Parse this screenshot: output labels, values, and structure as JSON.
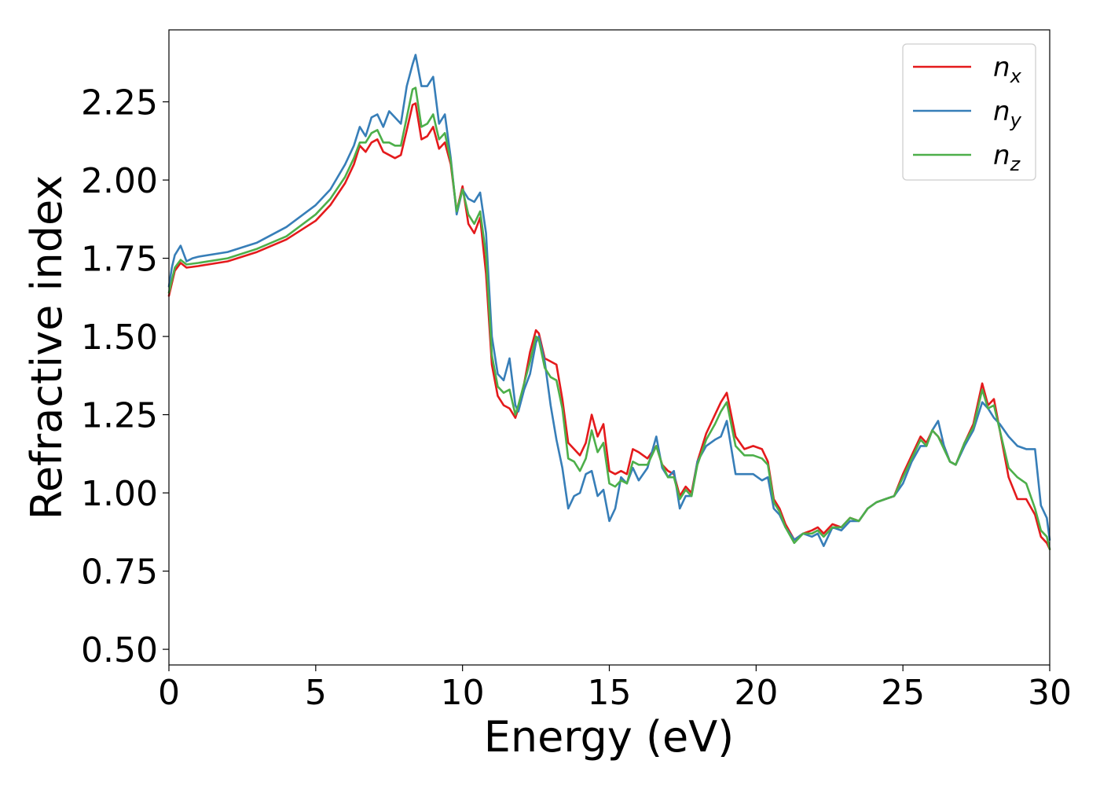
{
  "chart_data": {
    "type": "line",
    "title": "",
    "xlabel": "Energy (eV)",
    "ylabel": "Refractive index",
    "xlim": [
      0,
      30
    ],
    "ylim": [
      0.45,
      2.48
    ],
    "xticks": [
      0,
      5,
      10,
      15,
      20,
      25,
      30
    ],
    "xtick_labels": [
      "0",
      "5",
      "10",
      "15",
      "20",
      "25",
      "30"
    ],
    "yticks": [
      0.5,
      0.75,
      1.0,
      1.25,
      1.5,
      1.75,
      2.0,
      2.25
    ],
    "ytick_labels": [
      "0.50",
      "0.75",
      "1.00",
      "1.25",
      "1.50",
      "1.75",
      "2.00",
      "2.25"
    ],
    "grid": false,
    "legend_position": "top-right",
    "series": [
      {
        "name": "n_x",
        "label_base": "n",
        "label_sub": "x",
        "color": "#e41a1c",
        "x": [
          0,
          0.2,
          0.4,
          0.6,
          1,
          2,
          3,
          4,
          5,
          5.5,
          6,
          6.3,
          6.5,
          6.7,
          6.9,
          7.1,
          7.3,
          7.5,
          7.7,
          7.9,
          8.1,
          8.3,
          8.4,
          8.6,
          8.8,
          9.0,
          9.2,
          9.4,
          9.6,
          9.8,
          10.0,
          10.2,
          10.4,
          10.6,
          10.8,
          11.0,
          11.2,
          11.4,
          11.6,
          11.8,
          11.9,
          12.1,
          12.3,
          12.5,
          12.6,
          12.8,
          13.0,
          13.2,
          13.4,
          13.6,
          13.8,
          14.0,
          14.2,
          14.4,
          14.6,
          14.8,
          15.0,
          15.2,
          15.4,
          15.6,
          15.8,
          16.0,
          16.3,
          16.6,
          16.8,
          17.0,
          17.2,
          17.4,
          17.6,
          17.8,
          18.0,
          18.3,
          18.6,
          18.8,
          19.0,
          19.3,
          19.6,
          19.9,
          20.2,
          20.4,
          20.6,
          20.8,
          21.0,
          21.3,
          21.6,
          21.9,
          22.1,
          22.3,
          22.6,
          22.9,
          23.2,
          23.5,
          23.8,
          24.1,
          24.4,
          24.7,
          25.0,
          25.3,
          25.6,
          25.8,
          26.0,
          26.2,
          26.4,
          26.6,
          26.8,
          27.1,
          27.4,
          27.7,
          27.9,
          28.1,
          28.3,
          28.6,
          28.9,
          29.2,
          29.5,
          29.7,
          29.9,
          30.0
        ],
        "y": [
          1.63,
          1.71,
          1.735,
          1.72,
          1.725,
          1.74,
          1.77,
          1.81,
          1.87,
          1.92,
          1.99,
          2.05,
          2.11,
          2.09,
          2.12,
          2.13,
          2.09,
          2.08,
          2.07,
          2.08,
          2.16,
          2.24,
          2.245,
          2.13,
          2.14,
          2.17,
          2.1,
          2.12,
          2.05,
          1.9,
          1.98,
          1.86,
          1.83,
          1.88,
          1.7,
          1.41,
          1.31,
          1.28,
          1.27,
          1.24,
          1.27,
          1.35,
          1.45,
          1.52,
          1.51,
          1.43,
          1.42,
          1.41,
          1.3,
          1.16,
          1.14,
          1.12,
          1.16,
          1.25,
          1.18,
          1.22,
          1.07,
          1.06,
          1.07,
          1.06,
          1.14,
          1.13,
          1.11,
          1.15,
          1.09,
          1.07,
          1.06,
          0.99,
          1.02,
          1.0,
          1.1,
          1.19,
          1.25,
          1.29,
          1.32,
          1.18,
          1.14,
          1.15,
          1.14,
          1.1,
          0.98,
          0.95,
          0.9,
          0.85,
          0.87,
          0.88,
          0.89,
          0.87,
          0.9,
          0.89,
          0.92,
          0.91,
          0.95,
          0.97,
          0.98,
          0.99,
          1.06,
          1.12,
          1.18,
          1.16,
          1.2,
          1.18,
          1.15,
          1.1,
          1.09,
          1.16,
          1.22,
          1.35,
          1.28,
          1.3,
          1.2,
          1.05,
          0.98,
          0.98,
          0.93,
          0.86,
          0.84,
          0.82
        ]
      },
      {
        "name": "n_y",
        "label_base": "n",
        "label_sub": "y",
        "color": "#377eb8",
        "x": [
          0,
          0.1,
          0.2,
          0.4,
          0.6,
          0.8,
          1,
          2,
          3,
          4,
          5,
          5.5,
          6,
          6.3,
          6.5,
          6.7,
          6.9,
          7.1,
          7.3,
          7.5,
          7.7,
          7.9,
          8.1,
          8.3,
          8.4,
          8.6,
          8.8,
          9.0,
          9.2,
          9.4,
          9.6,
          9.8,
          10.0,
          10.2,
          10.4,
          10.6,
          10.8,
          11.0,
          11.2,
          11.4,
          11.6,
          11.8,
          11.9,
          12.1,
          12.3,
          12.5,
          12.6,
          12.8,
          13.0,
          13.2,
          13.4,
          13.6,
          13.8,
          14.0,
          14.2,
          14.4,
          14.6,
          14.8,
          15.0,
          15.2,
          15.4,
          15.6,
          15.8,
          16.0,
          16.3,
          16.6,
          16.8,
          17.0,
          17.2,
          17.4,
          17.6,
          17.8,
          18.0,
          18.3,
          18.6,
          18.8,
          19.0,
          19.3,
          19.6,
          19.9,
          20.2,
          20.4,
          20.6,
          20.8,
          21.0,
          21.3,
          21.6,
          21.9,
          22.1,
          22.3,
          22.6,
          22.9,
          23.2,
          23.5,
          23.8,
          24.1,
          24.4,
          24.7,
          25.0,
          25.3,
          25.6,
          25.8,
          26.0,
          26.2,
          26.4,
          26.6,
          26.8,
          27.1,
          27.4,
          27.7,
          27.9,
          28.1,
          28.3,
          28.6,
          28.9,
          29.2,
          29.5,
          29.7,
          29.9,
          30.0
        ],
        "y": [
          1.66,
          1.72,
          1.76,
          1.79,
          1.74,
          1.75,
          1.755,
          1.77,
          1.8,
          1.85,
          1.92,
          1.97,
          2.05,
          2.11,
          2.17,
          2.14,
          2.2,
          2.21,
          2.17,
          2.22,
          2.2,
          2.18,
          2.3,
          2.37,
          2.4,
          2.3,
          2.3,
          2.33,
          2.18,
          2.21,
          2.07,
          1.89,
          1.97,
          1.94,
          1.93,
          1.96,
          1.83,
          1.5,
          1.38,
          1.36,
          1.43,
          1.28,
          1.26,
          1.33,
          1.38,
          1.48,
          1.5,
          1.42,
          1.28,
          1.17,
          1.08,
          0.95,
          0.99,
          1.0,
          1.06,
          1.07,
          0.99,
          1.01,
          0.91,
          0.95,
          1.05,
          1.03,
          1.08,
          1.04,
          1.08,
          1.18,
          1.08,
          1.05,
          1.07,
          0.95,
          0.99,
          0.99,
          1.1,
          1.15,
          1.17,
          1.18,
          1.23,
          1.06,
          1.06,
          1.06,
          1.04,
          1.05,
          0.95,
          0.93,
          0.89,
          0.85,
          0.87,
          0.86,
          0.87,
          0.83,
          0.89,
          0.88,
          0.91,
          0.91,
          0.95,
          0.97,
          0.98,
          0.99,
          1.03,
          1.1,
          1.15,
          1.15,
          1.2,
          1.23,
          1.15,
          1.1,
          1.09,
          1.15,
          1.2,
          1.29,
          1.27,
          1.24,
          1.22,
          1.18,
          1.15,
          1.14,
          1.14,
          0.96,
          0.92,
          0.85
        ]
      },
      {
        "name": "n_z",
        "label_base": "n",
        "label_sub": "z",
        "color": "#4daf4a",
        "x": [
          0,
          0.2,
          0.4,
          0.6,
          1,
          2,
          3,
          4,
          5,
          5.5,
          6,
          6.3,
          6.5,
          6.7,
          6.9,
          7.1,
          7.3,
          7.5,
          7.7,
          7.9,
          8.1,
          8.3,
          8.4,
          8.6,
          8.8,
          9.0,
          9.2,
          9.4,
          9.6,
          9.8,
          10.0,
          10.2,
          10.4,
          10.6,
          10.8,
          11.0,
          11.2,
          11.4,
          11.6,
          11.8,
          11.9,
          12.1,
          12.3,
          12.5,
          12.6,
          12.8,
          13.0,
          13.2,
          13.4,
          13.6,
          13.8,
          14.0,
          14.2,
          14.4,
          14.6,
          14.8,
          15.0,
          15.2,
          15.4,
          15.6,
          15.8,
          16.0,
          16.3,
          16.6,
          16.8,
          17.0,
          17.2,
          17.4,
          17.6,
          17.8,
          18.0,
          18.3,
          18.6,
          18.8,
          19.0,
          19.3,
          19.6,
          19.9,
          20.2,
          20.4,
          20.6,
          20.8,
          21.0,
          21.3,
          21.6,
          21.9,
          22.1,
          22.3,
          22.6,
          22.9,
          23.2,
          23.5,
          23.8,
          24.1,
          24.4,
          24.7,
          25.0,
          25.3,
          25.6,
          25.8,
          26.0,
          26.2,
          26.4,
          26.6,
          26.8,
          27.1,
          27.4,
          27.7,
          27.9,
          28.1,
          28.3,
          28.6,
          28.9,
          29.2,
          29.5,
          29.7,
          29.9,
          30.0
        ],
        "y": [
          1.64,
          1.72,
          1.745,
          1.73,
          1.735,
          1.75,
          1.78,
          1.82,
          1.89,
          1.94,
          2.01,
          2.07,
          2.12,
          2.12,
          2.15,
          2.16,
          2.12,
          2.12,
          2.11,
          2.11,
          2.2,
          2.29,
          2.295,
          2.17,
          2.18,
          2.21,
          2.13,
          2.15,
          2.06,
          1.9,
          1.97,
          1.89,
          1.86,
          1.9,
          1.76,
          1.44,
          1.34,
          1.32,
          1.33,
          1.25,
          1.28,
          1.35,
          1.42,
          1.5,
          1.49,
          1.4,
          1.37,
          1.36,
          1.27,
          1.11,
          1.1,
          1.07,
          1.11,
          1.2,
          1.13,
          1.16,
          1.03,
          1.02,
          1.04,
          1.03,
          1.1,
          1.09,
          1.09,
          1.15,
          1.09,
          1.05,
          1.05,
          0.98,
          1.01,
          0.99,
          1.09,
          1.17,
          1.22,
          1.26,
          1.29,
          1.15,
          1.12,
          1.12,
          1.11,
          1.09,
          0.97,
          0.94,
          0.89,
          0.84,
          0.87,
          0.87,
          0.88,
          0.86,
          0.89,
          0.89,
          0.92,
          0.91,
          0.95,
          0.97,
          0.98,
          0.99,
          1.05,
          1.11,
          1.17,
          1.15,
          1.2,
          1.18,
          1.14,
          1.1,
          1.09,
          1.16,
          1.21,
          1.33,
          1.27,
          1.28,
          1.2,
          1.08,
          1.05,
          1.03,
          0.95,
          0.88,
          0.86,
          0.82
        ]
      }
    ]
  }
}
